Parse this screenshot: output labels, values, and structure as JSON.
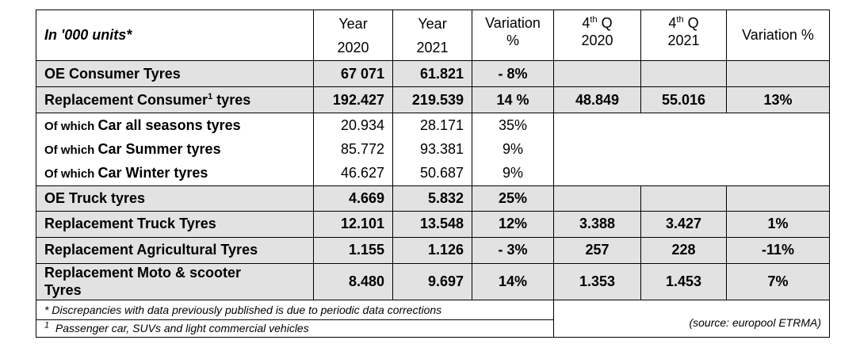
{
  "header": {
    "unit_label": "In '000 units*",
    "col_year2020": [
      "Year",
      "2020"
    ],
    "col_year2021": [
      "Year",
      "2021"
    ],
    "col_variation": [
      "Variation",
      "%"
    ],
    "col_q2020_pre": "4",
    "col_q2020_sup": "th",
    "col_q2020_post": " Q",
    "col_q2020_year": "2020",
    "col_q2021_pre": "4",
    "col_q2021_sup": "th",
    "col_q2021_post": " Q",
    "col_q2021_year": "2021",
    "col_variation_q": "Variation %"
  },
  "rows": {
    "oe_consumer": {
      "label": "OE Consumer Tyres",
      "y2020": "67 071",
      "y2021": "61.821",
      "var": "- 8%",
      "q2020": "",
      "q2021": "",
      "qvar": ""
    },
    "repl_consumer": {
      "label_pre": "Replacement Consumer",
      "label_sup": "1",
      "label_post": " tyres",
      "y2020": "192.427",
      "y2021": "219.539",
      "var": "14 %",
      "q2020": "48.849",
      "q2021": "55.016",
      "qvar": "13%"
    },
    "car_all_seasons": {
      "prefix": "Of which ",
      "label": "Car all seasons tyres",
      "y2020": "20.934",
      "y2021": "28.171",
      "var": "35%"
    },
    "car_summer": {
      "prefix": "Of which ",
      "label": "Car Summer tyres",
      "y2020": "85.772",
      "y2021": "93.381",
      "var": "9%"
    },
    "car_winter": {
      "prefix": "Of which ",
      "label": "Car Winter tyres",
      "y2020": "46.627",
      "y2021": "50.687",
      "var": "9%"
    },
    "oe_truck": {
      "label": "OE Truck tyres",
      "y2020": "4.669",
      "y2021": "5.832",
      "var": "25%",
      "q2020": "",
      "q2021": "",
      "qvar": ""
    },
    "repl_truck": {
      "label": "Replacement Truck Tyres",
      "y2020": "12.101",
      "y2021": "13.548",
      "var": "12%",
      "q2020": "3.388",
      "q2021": "3.427",
      "qvar": "1%"
    },
    "repl_agri": {
      "label": "Replacement Agricultural Tyres",
      "y2020": "1.155",
      "y2021": "1.126",
      "var": "- 3%",
      "q2020": "257",
      "q2021": "228",
      "qvar": "-11%"
    },
    "repl_moto": {
      "label_line1": "Replacement Moto & scooter",
      "label_line2": "Tyres",
      "y2020": "8.480",
      "y2021": "9.697",
      "var": "14%",
      "q2020": "1.353",
      "q2021": "1.453",
      "qvar": "7%"
    }
  },
  "footer": {
    "note_discrepancies": "* Discrepancies with data previously published is due to periodic data corrections",
    "note_passenger_sup": "1",
    "note_passenger": "  Passenger car, SUVs and light commercial vehicles",
    "source": "(source: europool ETRMA)"
  }
}
